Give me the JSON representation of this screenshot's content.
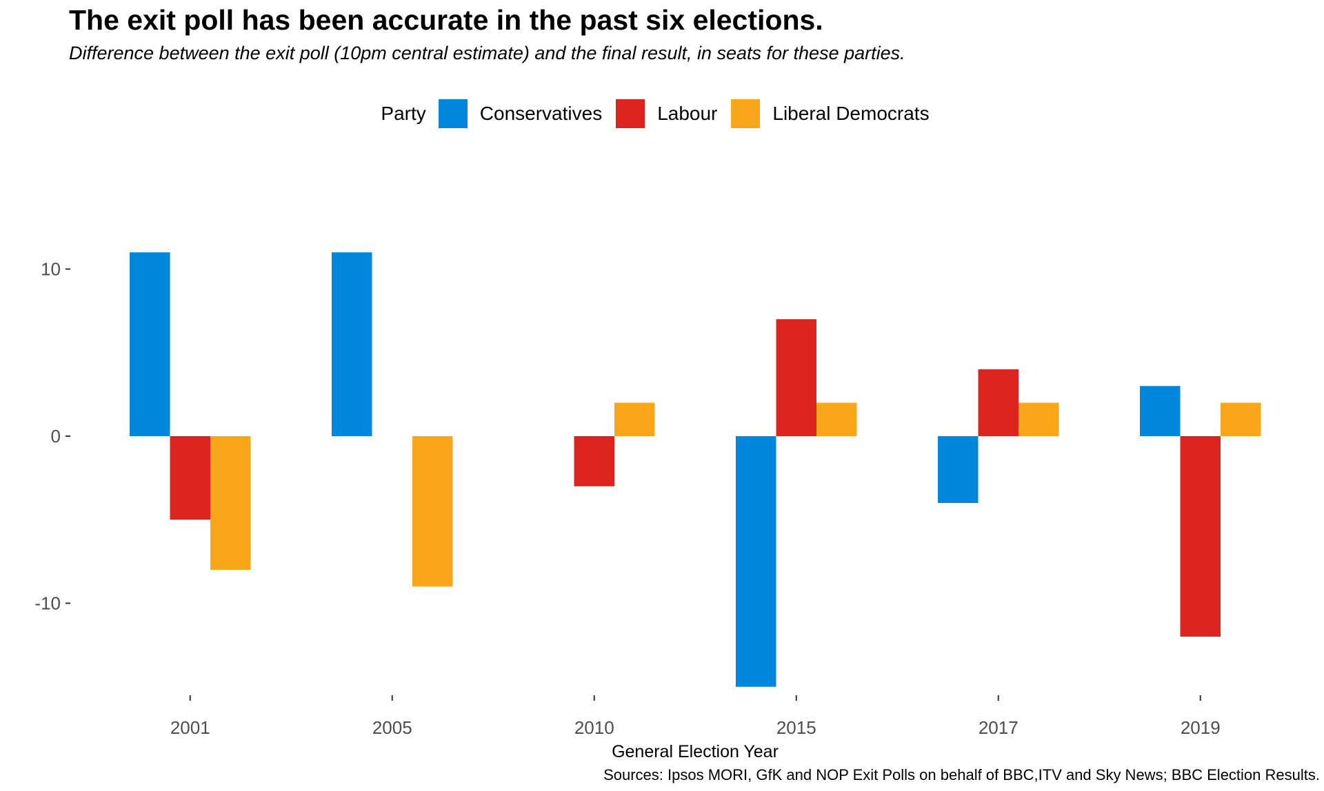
{
  "chart_data": {
    "type": "bar",
    "title": "The exit poll has been accurate in the past six elections.",
    "subtitle": "Difference between the exit poll (10pm central estimate) and the final result, in seats for these parties.",
    "xlabel": "General Election Year",
    "ylabel": "",
    "categories": [
      "2001",
      "2005",
      "2010",
      "2015",
      "2017",
      "2019"
    ],
    "series": [
      {
        "name": "Conservatives",
        "color": "#0087DC",
        "values": [
          11,
          11,
          0,
          -15,
          -4,
          3
        ]
      },
      {
        "name": "Labour",
        "color": "#DC241F",
        "values": [
          -5,
          0,
          -3,
          7,
          4,
          -12
        ]
      },
      {
        "name": "Liberal Democrats",
        "color": "#FAA61A",
        "values": [
          -8,
          -9,
          2,
          2,
          2,
          2
        ]
      }
    ],
    "y_ticks": [
      10,
      0,
      -10
    ],
    "y_tick_labels": [
      "10",
      "0",
      "-10"
    ],
    "ylim": [
      -16,
      12
    ],
    "grid": false,
    "legend": {
      "title": "Party",
      "position": "top"
    },
    "source": "Sources: Ipsos MORI, GfK and NOP Exit Polls on behalf of BBC,ITV and Sky News; BBC Election Results."
  }
}
